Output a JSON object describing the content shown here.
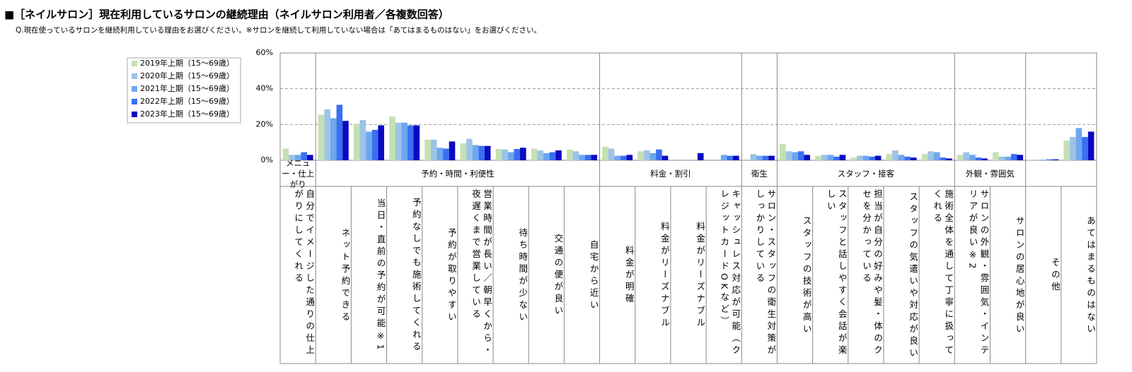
{
  "chart_data": {
    "type": "bar",
    "title": "■［ネイルサロン］現在利用しているサロンの継続理由（ネイルサロン利用者／各複数回答）",
    "subtitle": "Q.現在使っているサロンを継続利用している理由をお選びください。※サロンを継続して利用していない場合は「あてはまるものはない」をお選びください。",
    "groups": [
      {
        "name": "メニュー・仕上がり",
        "categories": [
          "自分でイメージした通りの仕上がりにしてくれる"
        ]
      },
      {
        "name": "予約・時間・利便性",
        "categories": [
          "ネット予約できる",
          "当日・直前の予約が可能※1",
          "予約なしでも施術してくれる",
          "予約が取りやすい",
          "営業時間が長い／朝早くから・夜遅くまで営業している",
          "待ち時間が少ない",
          "交通の便が良い",
          "自宅から近い"
        ]
      },
      {
        "name": "料金・割引",
        "categories": [
          "料金が明確",
          "料金がリーズナブル",
          "料金がリーズナブル",
          "キャッシュレス対応が可能（クレジットカードOKなど）"
        ]
      },
      {
        "name": "衛生",
        "categories": [
          "サロン・スタッフの衛生対策がしっかりしている"
        ]
      },
      {
        "name": "スタッフ・接客",
        "categories": [
          "スタッフの技術が高い",
          "スタッフと話しやすく会話が楽しい",
          "担当が自分の好みや髪・体のクセを分かっている",
          "スタッフの気遣いや対応が良い",
          "施術全体を通して丁寧に扱ってくれる"
        ]
      },
      {
        "name": "外観・雰囲気",
        "categories": [
          "サロンの外観・雰囲気・インテリアが良い※2",
          "サロンの居心地が良い"
        ]
      },
      {
        "name": "",
        "categories": [
          "その他",
          "あてはまるものはない"
        ]
      }
    ],
    "series": [
      {
        "name": "2019年上期（15～69歳）",
        "color": "#c5e0b3",
        "values": [
          6.5,
          25.5,
          20.5,
          24.5,
          11.5,
          9.5,
          6.3,
          6.5,
          6,
          7.5,
          5,
          0,
          0,
          0,
          9,
          2.5,
          1.5,
          3.5,
          3.5,
          3,
          4.5,
          0.3,
          11
        ]
      },
      {
        "name": "2020年上期（15～69歳）",
        "color": "#9dc3e6",
        "values": [
          3,
          28.5,
          22.5,
          21,
          11.5,
          12,
          6,
          5.5,
          5,
          6.5,
          5.5,
          0,
          0,
          3.5,
          5,
          3,
          2.5,
          5.5,
          5,
          4.5,
          2,
          0.3,
          13
        ]
      },
      {
        "name": "2021年上期（15～69歳）",
        "color": "#6ea6f0",
        "values": [
          3,
          23.5,
          16,
          21,
          7,
          8.5,
          4.5,
          4,
          3,
          2.5,
          4,
          0,
          3,
          2.5,
          4.5,
          3,
          2.5,
          3,
          4.5,
          3,
          2,
          0.3,
          18
        ]
      },
      {
        "name": "2022年上期（15～69歳）",
        "color": "#3a6ff0",
        "values": [
          4.5,
          31,
          17,
          19.5,
          6.5,
          8,
          6.3,
          4.5,
          3,
          2.5,
          6,
          0,
          2.5,
          2.5,
          5,
          2,
          2,
          2,
          1.5,
          1.5,
          3.5,
          0.5,
          13
        ]
      },
      {
        "name": "2023年上期（15～69歳）",
        "color": "#0a0ac0",
        "values": [
          3,
          22,
          19.5,
          19.5,
          10.5,
          8,
          7,
          5.5,
          3,
          3,
          2.5,
          4,
          2.5,
          2.5,
          3,
          3,
          2.5,
          1.5,
          1,
          1,
          3,
          0.5,
          16
        ]
      }
    ],
    "ylim": [
      0,
      60
    ],
    "yticks": [
      {
        "value": 0,
        "label": "0%"
      },
      {
        "value": 20,
        "label": "20%"
      },
      {
        "value": 40,
        "label": "40%"
      },
      {
        "value": 60,
        "label": "60%"
      }
    ],
    "grid": true,
    "legend": "upper left"
  }
}
